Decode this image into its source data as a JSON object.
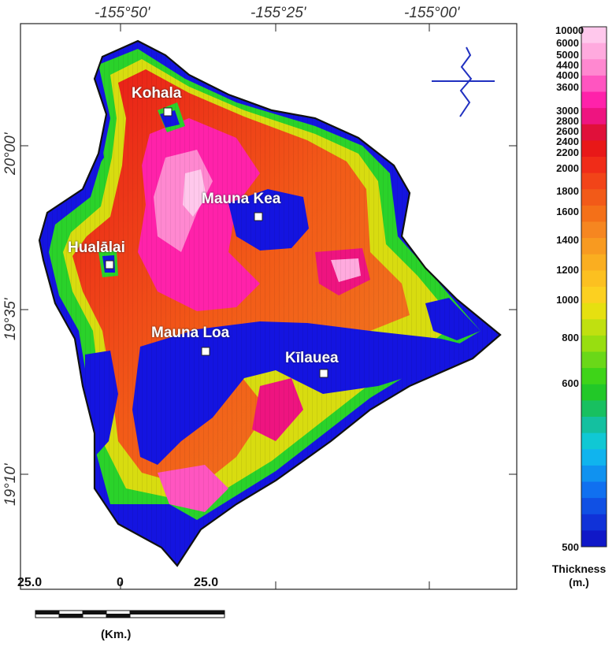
{
  "longitude_labels": [
    "-155°50'",
    "-155°25'",
    "-155°00'"
  ],
  "latitude_labels": [
    "20°00'",
    "19°35'",
    "19°10'"
  ],
  "volcanoes": [
    {
      "name": "Kohala"
    },
    {
      "name": "Mauna Kea"
    },
    {
      "name": "Hualālai"
    },
    {
      "name": "Mauna Loa"
    },
    {
      "name": "Kīlauea"
    }
  ],
  "colorbar": {
    "title": "Thickness",
    "unit": "(m.)",
    "labels": [
      "10000",
      "6000",
      "5000",
      "4400",
      "4000",
      "3600",
      "3000",
      "2800",
      "2600",
      "2400",
      "2200",
      "2000",
      "1800",
      "1600",
      "1400",
      "1200",
      "1000",
      "800",
      "600",
      "500"
    ],
    "colors": [
      "#ffc8ec",
      "#ffaade",
      "#ff88d0",
      "#ff55c0",
      "#ff22aa",
      "#ee1480",
      "#e0103a",
      "#e81818",
      "#f02c18",
      "#f24418",
      "#f25a18",
      "#f47018",
      "#f68620",
      "#f89a20",
      "#faae20",
      "#fcc020",
      "#fcd020",
      "#e6e010",
      "#c0e010",
      "#98de10",
      "#6ad818",
      "#3ed418",
      "#22c828",
      "#18c060",
      "#14c0a0",
      "#10c8d4",
      "#10b4ee",
      "#1092f0",
      "#1070f0",
      "#1050e4",
      "#1032d8",
      "#1018c8"
    ]
  },
  "scale_bar": {
    "labels": [
      "25.0",
      "0",
      "25.0"
    ],
    "unit": "(Km.)"
  },
  "colors": {
    "ocean": "#ffffff",
    "low_thickness": "#1414e0",
    "frame": "#222222"
  }
}
